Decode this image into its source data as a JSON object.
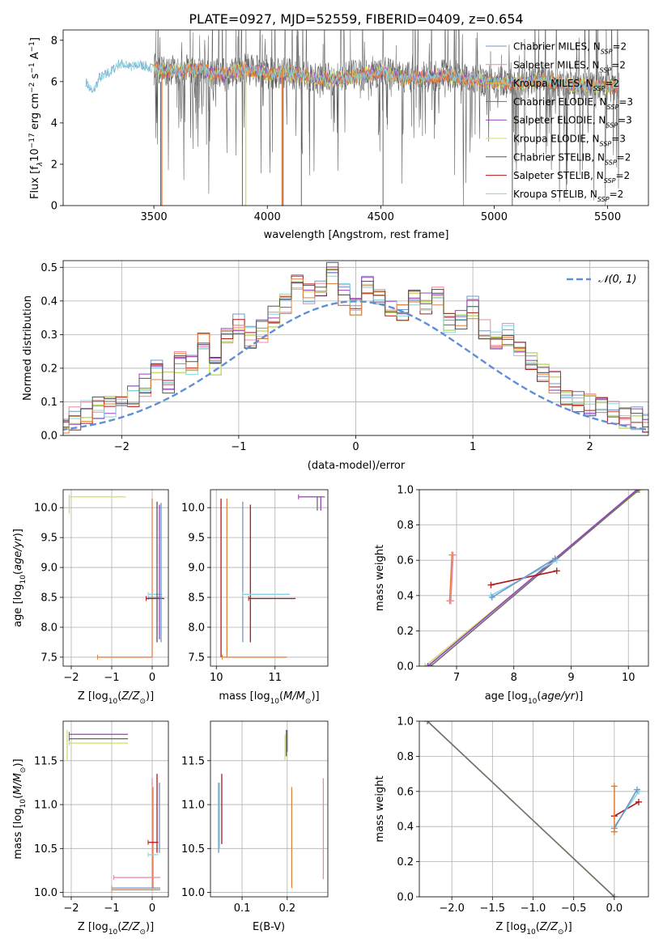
{
  "title": "PLATE=0927, MJD=52559, FIBERID=0409, z=0.654",
  "colors": {
    "chabrier_miles": "#6b98c8",
    "salpeter_miles": "#e889a0",
    "kroupa_miles": "#e6b43a",
    "chabrier_elodie": "#6f6f6f",
    "salpeter_elodie": "#9a3fbf",
    "kroupa_elodie": "#c8e06a",
    "chabrier_stelib": "#555555",
    "salpeter_stelib": "#b01818",
    "kroupa_stelib": "#88d3e0",
    "orange": "#e3803e",
    "normal": "#5f8fd6"
  },
  "legend_spectrum": [
    {
      "prefix": "Chabrier MILES, N",
      "sub": "SSP",
      "suffix": "=2",
      "color_key": "chabrier_miles"
    },
    {
      "prefix": "Salpeter MILES, N",
      "sub": "SSP",
      "suffix": "=2",
      "color_key": "salpeter_miles"
    },
    {
      "prefix": "Kroupa MILES, N",
      "sub": "SSP",
      "suffix": "=2",
      "color_key": "kroupa_miles"
    },
    {
      "prefix": "Chabrier ELODIE, N",
      "sub": "SSP",
      "suffix": "=3",
      "color_key": "chabrier_elodie"
    },
    {
      "prefix": "Salpeter ELODIE, N",
      "sub": "SSP",
      "suffix": "=3",
      "color_key": "salpeter_elodie"
    },
    {
      "prefix": "Kroupa ELODIE, N",
      "sub": "SSP",
      "suffix": "=3",
      "color_key": "kroupa_elodie"
    },
    {
      "prefix": "Chabrier STELIB, N",
      "sub": "SSP",
      "suffix": "=2",
      "color_key": "chabrier_stelib"
    },
    {
      "prefix": "Salpeter STELIB, N",
      "sub": "SSP",
      "suffix": "=2",
      "color_key": "salpeter_stelib"
    },
    {
      "prefix": "Kroupa STELIB, N",
      "sub": "SSP",
      "suffix": "=2",
      "color_key": "kroupa_stelib"
    }
  ],
  "chart_data": [
    {
      "id": "spectrum",
      "type": "line",
      "xlabel": "wavelength [Angstrom, rest frame]",
      "ylabel_parts": {
        "a": "Flux [f",
        "b": "λ",
        "c": "10",
        "d": "−17",
        "e": " erg cm",
        "f": "−2",
        "g": " s",
        "h": "−1",
        "i": " A",
        "j": "−1",
        "k": "]"
      },
      "xlim": [
        3100,
        5680
      ],
      "ylim": [
        0,
        8.5
      ],
      "xticks": [
        3500,
        4000,
        4500,
        5000,
        5500
      ],
      "yticks": [
        0,
        2,
        4,
        6,
        8
      ],
      "continuum": [
        [
          3200,
          6.0
        ],
        [
          3230,
          5.4
        ],
        [
          3260,
          6.2
        ],
        [
          3300,
          6.4
        ],
        [
          3350,
          6.9
        ],
        [
          3400,
          6.7
        ],
        [
          3450,
          6.8
        ],
        [
          3500,
          6.6
        ],
        [
          3600,
          6.5
        ],
        [
          3700,
          6.6
        ],
        [
          3800,
          6.3
        ],
        [
          3900,
          6.6
        ],
        [
          4000,
          6.4
        ],
        [
          4100,
          6.4
        ],
        [
          4200,
          6.2
        ],
        [
          4300,
          6.1
        ],
        [
          4400,
          6.3
        ],
        [
          4500,
          6.5
        ],
        [
          4600,
          6.2
        ],
        [
          4700,
          6.2
        ],
        [
          4800,
          6.3
        ],
        [
          4900,
          6.1
        ],
        [
          5000,
          6.0
        ],
        [
          5100,
          5.9
        ],
        [
          5200,
          6.1
        ],
        [
          5300,
          5.9
        ],
        [
          5400,
          5.8
        ],
        [
          5500,
          5.7
        ],
        [
          5550,
          5.7
        ]
      ],
      "model_start": 3200,
      "data_start": 3500,
      "orange_drops_x": [
        3535,
        4065
      ],
      "yellow_drop_x": 3905,
      "deep_absorption_x": [
        3530,
        3890,
        4070,
        4150,
        4510,
        5080
      ]
    },
    {
      "id": "residuals",
      "type": "histogram",
      "xlabel": "(data-model)/error",
      "ylabel": "Normed distribution",
      "xlim": [
        -2.5,
        2.5
      ],
      "ylim": [
        0,
        0.52
      ],
      "xticks": [
        -2,
        -1,
        0,
        1,
        2
      ],
      "yticks": [
        0.0,
        0.1,
        0.2,
        0.3,
        0.4,
        0.5
      ],
      "bin_width": 0.1,
      "base_values": [
        0.02,
        0.03,
        0.04,
        0.05,
        0.07,
        0.08,
        0.09,
        0.1,
        0.12,
        0.15,
        0.19,
        0.16,
        0.22,
        0.21,
        0.27,
        0.21,
        0.3,
        0.33,
        0.29,
        0.31,
        0.35,
        0.39,
        0.45,
        0.42,
        0.43,
        0.48,
        0.42,
        0.39,
        0.44,
        0.41,
        0.38,
        0.37,
        0.41,
        0.39,
        0.42,
        0.33,
        0.35,
        0.38,
        0.31,
        0.29,
        0.3,
        0.26,
        0.23,
        0.19,
        0.16,
        0.12,
        0.1,
        0.09,
        0.08,
        0.07,
        0.05,
        0.05,
        0.04,
        0.04,
        0.03
      ],
      "legend": "𝒩(0, 1)"
    },
    {
      "id": "age_vs_Z",
      "type": "errorbar",
      "xlabel": "Z [log10(Z/Z⊙)]",
      "ylabel": "age [log10(age/yr)]",
      "xlim": [
        -2.2,
        0.4
      ],
      "ylim": [
        7.35,
        10.3
      ],
      "xticks": [
        -2,
        -1,
        0
      ],
      "yticks": [
        7.5,
        8.0,
        8.5,
        9.0,
        9.5,
        10.0
      ],
      "bars": [
        {
          "orient": "h",
          "a": -2.05,
          "b": -0.65,
          "at": 10.18,
          "color_key": "kroupa_elodie"
        },
        {
          "orient": "v",
          "a": 9.9,
          "b": 10.18,
          "at": -2.05,
          "color_key": "kroupa_elodie"
        },
        {
          "orient": "h",
          "a": -1.35,
          "b": 0.0,
          "at": 7.5,
          "color_key": "orange"
        },
        {
          "orient": "v",
          "a": 7.5,
          "b": 10.15,
          "at": 0.0,
          "color_key": "orange"
        },
        {
          "orient": "h",
          "a": -0.1,
          "b": 0.25,
          "at": 8.5,
          "color_key": "chabrier_miles"
        },
        {
          "orient": "h",
          "a": -0.1,
          "b": 0.25,
          "at": 8.55,
          "color_key": "kroupa_stelib"
        },
        {
          "orient": "h",
          "a": -0.15,
          "b": 0.3,
          "at": 8.48,
          "color_key": "salpeter_stelib"
        },
        {
          "orient": "v",
          "a": 7.75,
          "b": 10.1,
          "at": 0.12,
          "color_key": "chabrier_stelib"
        },
        {
          "orient": "v",
          "a": 7.8,
          "b": 10.05,
          "at": 0.18,
          "color_key": "salpeter_elodie"
        },
        {
          "orient": "v",
          "a": 7.75,
          "b": 10.08,
          "at": 0.22,
          "color_key": "chabrier_miles"
        }
      ]
    },
    {
      "id": "age_vs_mass",
      "type": "errorbar",
      "xlabel": "mass [log10(M/M⊙)]",
      "ylabel": "",
      "xlim": [
        9.9,
        11.9
      ],
      "ylim": [
        7.35,
        10.3
      ],
      "xticks": [
        10,
        11
      ],
      "yticks": [
        7.5,
        8.0,
        8.5,
        9.0,
        9.5,
        10.0
      ],
      "bars": [
        {
          "orient": "v",
          "a": 7.5,
          "b": 10.15,
          "at": 10.08,
          "color_key": "salpeter_stelib"
        },
        {
          "orient": "v",
          "a": 7.5,
          "b": 10.15,
          "at": 10.18,
          "color_key": "orange"
        },
        {
          "orient": "h",
          "a": 10.1,
          "b": 11.2,
          "at": 7.5,
          "color_key": "orange"
        },
        {
          "orient": "v",
          "a": 7.75,
          "b": 10.1,
          "at": 10.45,
          "color_key": "chabrier_miles"
        },
        {
          "orient": "v",
          "a": 7.75,
          "b": 10.05,
          "at": 10.58,
          "color_key": "salpeter_stelib"
        },
        {
          "orient": "h",
          "a": 10.45,
          "b": 11.25,
          "at": 8.55,
          "color_key": "kroupa_stelib"
        },
        {
          "orient": "h",
          "a": 10.55,
          "b": 11.35,
          "at": 8.48,
          "color_key": "salpeter_stelib"
        },
        {
          "orient": "h",
          "a": 11.4,
          "b": 11.8,
          "at": 10.18,
          "color_key": "kroupa_elodie"
        },
        {
          "orient": "h",
          "a": 11.4,
          "b": 11.85,
          "at": 10.18,
          "color_key": "salpeter_elodie"
        },
        {
          "orient": "v",
          "a": 9.95,
          "b": 10.18,
          "at": 11.72,
          "color_key": "chabrier_elodie"
        },
        {
          "orient": "v",
          "a": 9.95,
          "b": 10.18,
          "at": 11.78,
          "color_key": "salpeter_elodie"
        }
      ]
    },
    {
      "id": "massweight_vs_age",
      "type": "line",
      "xlabel": "age [log10(age/yr)]",
      "ylabel": "mass weight",
      "xlim": [
        6.35,
        10.35
      ],
      "ylim": [
        0,
        1
      ],
      "xticks": [
        7,
        8,
        9,
        10
      ],
      "yticks": [
        0.0,
        0.2,
        0.4,
        0.6,
        0.8,
        1.0
      ],
      "series": [
        {
          "color_key": "kroupa_elodie",
          "points": [
            [
              6.45,
              0.0
            ],
            [
              10.2,
              1.0
            ]
          ]
        },
        {
          "color_key": "salpeter_elodie",
          "points": [
            [
              6.5,
              0.0
            ],
            [
              10.15,
              1.0
            ]
          ]
        },
        {
          "color_key": "chabrier_elodie",
          "points": [
            [
              6.55,
              0.0
            ],
            [
              10.18,
              1.0
            ]
          ]
        },
        {
          "color_key": "salpeter_stelib",
          "points": [
            [
              7.6,
              0.46
            ],
            [
              8.75,
              0.54
            ]
          ]
        },
        {
          "color_key": "kroupa_stelib",
          "points": [
            [
              7.6,
              0.4
            ],
            [
              8.75,
              0.6
            ]
          ]
        },
        {
          "color_key": "chabrier_miles",
          "points": [
            [
              7.62,
              0.39
            ],
            [
              8.72,
              0.61
            ]
          ]
        },
        {
          "color_key": "orange",
          "points": [
            [
              6.88,
              0.37
            ],
            [
              6.92,
              0.63
            ]
          ]
        },
        {
          "color_key": "salpeter_miles",
          "points": [
            [
              6.9,
              0.37
            ],
            [
              6.94,
              0.63
            ]
          ]
        }
      ]
    },
    {
      "id": "mass_vs_Z",
      "type": "errorbar",
      "xlabel": "Z [log10(Z/Z⊙)]",
      "ylabel": "mass [log10(M/M⊙)]",
      "xlim": [
        -2.2,
        0.4
      ],
      "ylim": [
        9.95,
        11.95
      ],
      "xticks": [
        -2,
        -1,
        0
      ],
      "yticks": [
        10.0,
        10.5,
        11.0,
        11.5
      ],
      "bars": [
        {
          "orient": "h",
          "a": -2.05,
          "b": -0.6,
          "at": 11.8,
          "color_key": "salpeter_elodie"
        },
        {
          "orient": "h",
          "a": -2.05,
          "b": -0.6,
          "at": 11.75,
          "color_key": "chabrier_elodie"
        },
        {
          "orient": "h",
          "a": -2.05,
          "b": -0.6,
          "at": 11.7,
          "color_key": "kroupa_elodie"
        },
        {
          "orient": "v",
          "a": 11.5,
          "b": 11.85,
          "at": -2.1,
          "color_key": "kroupa_elodie"
        },
        {
          "orient": "v",
          "a": 10.05,
          "b": 11.3,
          "at": 0.0,
          "color_key": "salpeter_miles"
        },
        {
          "orient": "v",
          "a": 10.05,
          "b": 11.2,
          "at": 0.02,
          "color_key": "orange"
        },
        {
          "orient": "v",
          "a": 10.45,
          "b": 11.35,
          "at": 0.12,
          "color_key": "salpeter_stelib"
        },
        {
          "orient": "v",
          "a": 10.45,
          "b": 11.25,
          "at": 0.18,
          "color_key": "chabrier_miles"
        },
        {
          "orient": "h",
          "a": -0.1,
          "b": 0.15,
          "at": 10.57,
          "color_key": "salpeter_stelib"
        },
        {
          "orient": "h",
          "a": -0.1,
          "b": 0.15,
          "at": 10.43,
          "color_key": "kroupa_stelib"
        },
        {
          "orient": "h",
          "a": -0.95,
          "b": 0.2,
          "at": 10.17,
          "color_key": "salpeter_miles"
        },
        {
          "orient": "h",
          "a": -1.0,
          "b": 0.2,
          "at": 10.05,
          "color_key": "chabrier_miles"
        },
        {
          "orient": "h",
          "a": -1.0,
          "b": 0.2,
          "at": 10.03,
          "color_key": "orange"
        }
      ]
    },
    {
      "id": "mass_vs_EBV",
      "type": "errorbar",
      "xlabel": "E(B-V)",
      "ylabel": "",
      "xlim": [
        0.03,
        0.29
      ],
      "ylim": [
        9.95,
        11.95
      ],
      "xticks": [
        0.1,
        0.2
      ],
      "yticks": [
        10.0,
        10.5,
        11.0,
        11.5
      ],
      "bars": [
        {
          "orient": "v",
          "a": 10.45,
          "b": 11.25,
          "at": 0.048,
          "color_key": "chabrier_miles"
        },
        {
          "orient": "v",
          "a": 10.5,
          "b": 11.25,
          "at": 0.05,
          "color_key": "kroupa_stelib"
        },
        {
          "orient": "v",
          "a": 10.55,
          "b": 11.35,
          "at": 0.055,
          "color_key": "salpeter_stelib"
        },
        {
          "orient": "v",
          "a": 11.5,
          "b": 11.8,
          "at": 0.195,
          "color_key": "kroupa_elodie"
        },
        {
          "orient": "v",
          "a": 11.55,
          "b": 11.85,
          "at": 0.198,
          "color_key": "salpeter_elodie"
        },
        {
          "orient": "v",
          "a": 11.6,
          "b": 11.85,
          "at": 0.2,
          "color_key": "chabrier_elodie"
        },
        {
          "orient": "v",
          "a": 10.05,
          "b": 11.2,
          "at": 0.21,
          "color_key": "orange"
        },
        {
          "orient": "v",
          "a": 10.15,
          "b": 11.3,
          "at": 0.28,
          "color_key": "salpeter_miles"
        }
      ]
    },
    {
      "id": "massweight_vs_Z",
      "type": "line",
      "xlabel": "Z [log10(Z/Z⊙)]",
      "ylabel": "mass weight",
      "xlim": [
        -2.4,
        0.42
      ],
      "ylim": [
        0,
        1
      ],
      "xticks": [
        -2.0,
        -1.5,
        -1.0,
        -0.5,
        0.0
      ],
      "yticks": [
        0.0,
        0.2,
        0.4,
        0.6,
        0.8,
        1.0
      ],
      "series": [
        {
          "color_key": "kroupa_elodie",
          "points": [
            [
              -2.3,
              1.0
            ],
            [
              0.0,
              0.0
            ]
          ]
        },
        {
          "color_key": "chabrier_elodie",
          "points": [
            [
              -2.3,
              1.0
            ],
            [
              0.0,
              0.0
            ]
          ]
        },
        {
          "color_key": "salpeter_stelib",
          "points": [
            [
              0.0,
              0.46
            ],
            [
              0.3,
              0.54
            ]
          ]
        },
        {
          "color_key": "kroupa_stelib",
          "points": [
            [
              0.0,
              0.4
            ],
            [
              0.3,
              0.6
            ]
          ]
        },
        {
          "color_key": "chabrier_miles",
          "points": [
            [
              0.0,
              0.39
            ],
            [
              0.28,
              0.61
            ]
          ]
        },
        {
          "color_key": "orange",
          "points": [
            [
              0.0,
              0.37
            ],
            [
              0.0,
              0.63
            ]
          ]
        }
      ]
    }
  ]
}
